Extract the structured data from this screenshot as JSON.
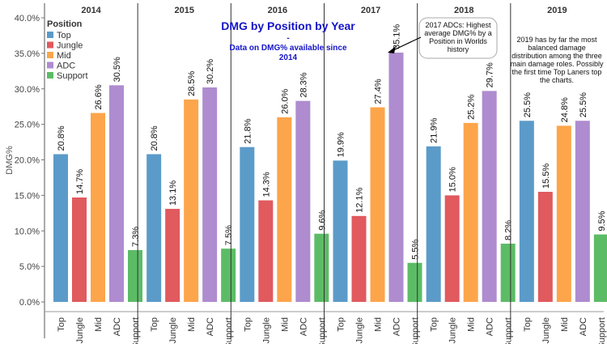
{
  "chart_data": {
    "type": "bar",
    "title": "DMG by Position by Year",
    "subtitle_lines": [
      "-",
      "Data on DMG% available since",
      "2014"
    ],
    "ylabel": "DMG%",
    "ylim": [
      0,
      40
    ],
    "yticks": [
      "0.0%",
      "5.0%",
      "10.0%",
      "15.0%",
      "20.0%",
      "25.0%",
      "30.0%",
      "35.0%",
      "40.0%"
    ],
    "grid": false,
    "legend": {
      "title": "Position",
      "placement": "top-left",
      "entries": [
        "Top",
        "Jungle",
        "Mid",
        "ADC",
        "Support"
      ]
    },
    "categories": [
      "Top",
      "Jungle",
      "Mid",
      "ADC",
      "Support"
    ],
    "colors": {
      "Top": "#5b9bc9",
      "Jungle": "#e05a5e",
      "Mid": "#fda54b",
      "ADC": "#ae8ccf",
      "Support": "#5cbc66"
    },
    "panels": [
      {
        "year": "2014",
        "values": [
          20.8,
          14.7,
          26.6,
          30.5,
          7.3
        ],
        "labels": [
          "20.8%",
          "14.7%",
          "26.6%",
          "30.5%",
          "7.3%"
        ]
      },
      {
        "year": "2015",
        "values": [
          20.8,
          13.1,
          28.5,
          30.2,
          7.5
        ],
        "labels": [
          "20.8%",
          "13.1%",
          "28.5%",
          "30.2%",
          "7.5%"
        ]
      },
      {
        "year": "2016",
        "values": [
          21.8,
          14.3,
          26.0,
          28.3,
          9.6
        ],
        "labels": [
          "21.8%",
          "14.3%",
          "26.0%",
          "28.3%",
          "9.6%"
        ]
      },
      {
        "year": "2017",
        "values": [
          19.9,
          12.1,
          27.4,
          35.1,
          5.5
        ],
        "labels": [
          "19.9%",
          "12.1%",
          "27.4%",
          "35.1%",
          "5.5%"
        ]
      },
      {
        "year": "2018",
        "values": [
          21.9,
          15.0,
          25.2,
          29.7,
          8.2
        ],
        "labels": [
          "21.9%",
          "15.0%",
          "25.2%",
          "29.7%",
          "8.2%"
        ]
      },
      {
        "year": "2019",
        "values": [
          25.5,
          15.5,
          24.8,
          25.5,
          9.5
        ],
        "labels": [
          "25.5%",
          "15.5%",
          "24.8%",
          "25.5%",
          "9.5%"
        ]
      }
    ],
    "annotations": [
      {
        "year": "2017",
        "lines": [
          "2017 ADCs: Highest",
          "average DMG% by a",
          "Position in Worlds",
          "history"
        ]
      },
      {
        "year": "2019",
        "lines": [
          "2019 has by far the most",
          "balanced damage",
          "distribution among the three",
          "main damage roles. Possibly",
          "the first time Top Laners top",
          "the charts."
        ]
      }
    ]
  }
}
